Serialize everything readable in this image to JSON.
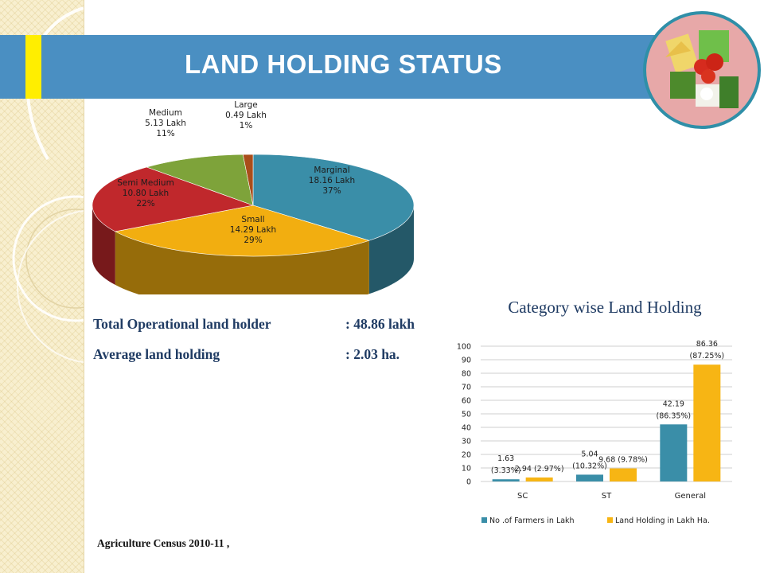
{
  "slide": {
    "title": "LAND HOLDING STATUS",
    "source_note": "Agriculture Census 2010-11 ,",
    "colors": {
      "title_bar": "#4a8fc2",
      "accent": "#ffee00",
      "heading_text": "#1f3b63"
    }
  },
  "badge": {
    "icon": "agriculture-collage-icon"
  },
  "stats": [
    {
      "label": "Total Operational land holder",
      "value": ": 48.86 lakh"
    },
    {
      "label": "Average land holding",
      "value": ": 2.03 ha."
    }
  ],
  "chart_data": [
    {
      "type": "pie",
      "slices": [
        {
          "label": "Marginal",
          "value": 18.16,
          "unit": "Lakh",
          "percent": "37%",
          "color": "#3a8ea8"
        },
        {
          "label": "Small",
          "value": 14.29,
          "unit": "Lakh",
          "percent": "29%",
          "color": "#f2ae10"
        },
        {
          "label": "Semi Medium",
          "value": 10.8,
          "unit": "Lakh",
          "percent": "22%",
          "color": "#c0282c"
        },
        {
          "label": "Medium",
          "value": 5.13,
          "unit": "Lakh",
          "percent": "11%",
          "color": "#7ea33a"
        },
        {
          "label": "Large",
          "value": 0.49,
          "unit": "Lakh",
          "percent": "1%",
          "color": "#a94d1a"
        }
      ]
    },
    {
      "type": "bar",
      "title": "Category wise Land Holding",
      "categories": [
        "SC",
        "ST",
        "General"
      ],
      "ylim": [
        0,
        100
      ],
      "yticks": [
        0,
        10,
        20,
        30,
        40,
        50,
        60,
        70,
        80,
        90,
        100
      ],
      "grid": true,
      "legend_position": "bottom",
      "series": [
        {
          "name": "No .of Farmers in Lakh",
          "color": "#3a8ea8",
          "values": [
            1.63,
            5.04,
            42.19
          ],
          "labels": [
            [
              "1.63",
              "(3.33%)"
            ],
            [
              "5.04",
              "(10.32%)"
            ],
            [
              "42.19",
              "(86.35%)"
            ]
          ]
        },
        {
          "name": "Land Holding in Lakh Ha.",
          "color": "#f7b514",
          "values": [
            2.94,
            9.68,
            86.36
          ],
          "labels": [
            [
              "2.94 (2.97%)"
            ],
            [
              "9.68 (9.78%)"
            ],
            [
              "86.36",
              "(87.25%)"
            ]
          ]
        }
      ]
    }
  ]
}
